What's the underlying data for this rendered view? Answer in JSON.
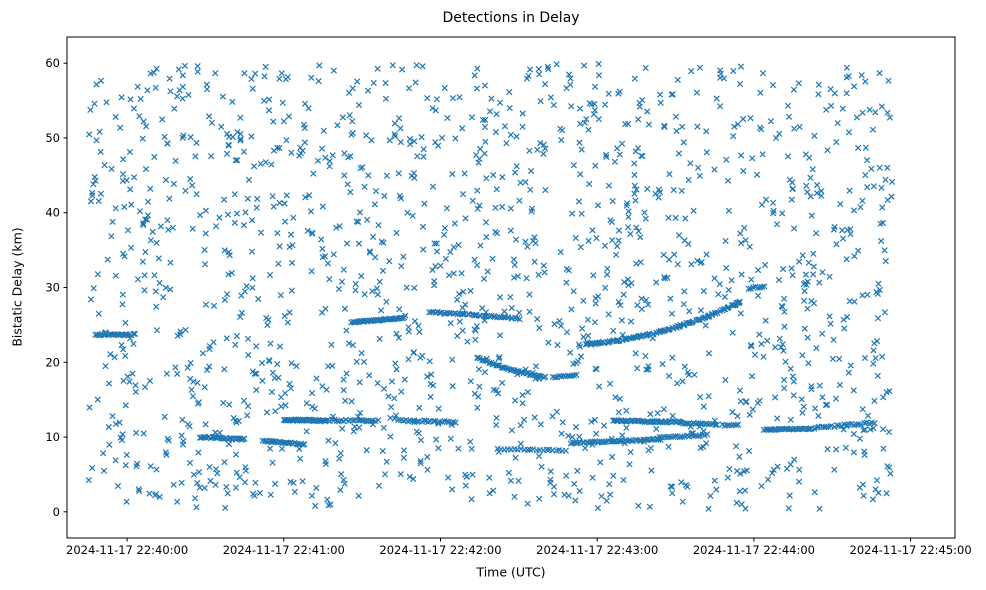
{
  "chart_data": {
    "type": "scatter",
    "title": "Detections in Delay",
    "xlabel": "Time (UTC)",
    "ylabel": "Bistatic Delay (km)",
    "marker": "x",
    "marker_color": "#1f77b4",
    "grid": false,
    "legend": "none",
    "x_tick_labels": [
      "2024-11-17 22:40:00",
      "2024-11-17 22:41:00",
      "2024-11-17 22:42:00",
      "2024-11-17 22:43:00",
      "2024-11-17 22:44:00",
      "2024-11-17 22:45:00"
    ],
    "x_tick_seconds": [
      0,
      60,
      120,
      180,
      240,
      300
    ],
    "y_ticks": [
      0,
      10,
      20,
      30,
      40,
      50,
      60
    ],
    "xlim_seconds": [
      -23,
      317
    ],
    "ylim": [
      -3.5,
      63.5
    ],
    "background_noise": {
      "comment": "dense uniform clutter detections filling the whole plot",
      "seed": 42,
      "count": 1500,
      "t_range_seconds": [
        -15,
        293
      ],
      "delay_range_km": [
        0.4,
        59.9
      ]
    },
    "tracks": [
      {
        "t0": -12,
        "t1": 3,
        "d0": 23.7,
        "d1": 23.7,
        "count": 26,
        "jitter": 0.12
      },
      {
        "t0": 28,
        "t1": 45,
        "d0": 10.0,
        "d1": 9.7,
        "count": 30,
        "jitter": 0.1
      },
      {
        "t0": 52,
        "t1": 68,
        "d0": 9.5,
        "d1": 9.0,
        "count": 26,
        "jitter": 0.1
      },
      {
        "t0": 60,
        "t1": 76,
        "d0": 12.3,
        "d1": 12.2,
        "count": 40,
        "jitter": 0.1
      },
      {
        "t0": 76,
        "t1": 96,
        "d0": 12.2,
        "d1": 12.2,
        "count": 24,
        "jitter": 0.15
      },
      {
        "t0": 104,
        "t1": 126,
        "d0": 12.2,
        "d1": 12.0,
        "count": 26,
        "jitter": 0.12
      },
      {
        "t0": 86,
        "t1": 106,
        "d0": 25.3,
        "d1": 25.9,
        "dm": 25.7,
        "count": 42,
        "jitter": 0.1
      },
      {
        "t0": 116,
        "t1": 150,
        "d0": 26.7,
        "d1": 25.8,
        "dm": 26.4,
        "count": 46,
        "jitter": 0.1
      },
      {
        "t0": 134,
        "t1": 160,
        "d0": 20.6,
        "d1": 18.0,
        "dm": 18.7,
        "count": 40,
        "jitter": 0.08
      },
      {
        "t0": 163,
        "t1": 172,
        "d0": 18.0,
        "d1": 18.3,
        "count": 12,
        "jitter": 0.08
      },
      {
        "t0": 176,
        "t1": 235,
        "d0": 22.4,
        "d1": 28.1,
        "dm": 23.2,
        "count": 110,
        "jitter": 0.12
      },
      {
        "t0": 238,
        "t1": 244,
        "d0": 29.9,
        "d1": 30.1,
        "count": 8,
        "jitter": 0.15
      },
      {
        "t0": 170,
        "t1": 204,
        "d0": 9.2,
        "d1": 9.7,
        "count": 48,
        "jitter": 0.1
      },
      {
        "t0": 204,
        "t1": 222,
        "d0": 9.9,
        "d1": 10.3,
        "count": 22,
        "jitter": 0.12
      },
      {
        "t0": 186,
        "t1": 212,
        "d0": 12.2,
        "d1": 12.0,
        "count": 46,
        "jitter": 0.1
      },
      {
        "t0": 212,
        "t1": 226,
        "d0": 11.9,
        "d1": 11.7,
        "count": 18,
        "jitter": 0.1
      },
      {
        "t0": 228,
        "t1": 234,
        "d0": 11.6,
        "d1": 11.6,
        "count": 8,
        "jitter": 0.1
      },
      {
        "t0": 244,
        "t1": 262,
        "d0": 11.0,
        "d1": 11.1,
        "count": 30,
        "jitter": 0.08
      },
      {
        "t0": 262,
        "t1": 286,
        "d0": 11.2,
        "d1": 11.9,
        "count": 26,
        "jitter": 0.12
      },
      {
        "t0": 142,
        "t1": 168,
        "d0": 8.4,
        "d1": 8.2,
        "count": 22,
        "jitter": 0.1
      }
    ]
  }
}
